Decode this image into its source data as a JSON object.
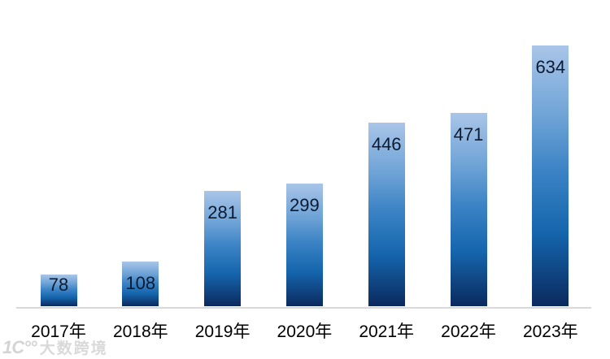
{
  "chart_data": {
    "type": "bar",
    "categories": [
      "2017年",
      "2018年",
      "2019年",
      "2020年",
      "2021年",
      "2022年",
      "2023年"
    ],
    "values": [
      78,
      108,
      281,
      299,
      446,
      471,
      634
    ],
    "title": "",
    "xlabel": "",
    "ylabel": "",
    "grid": false,
    "legend": false,
    "data_label_position": "inside-end",
    "bar_gradient_top": "#a9c5e8",
    "bar_gradient_mid": "#3b83c5",
    "bar_gradient_bottom": "#0b2a5e",
    "data_label_color": "#0c1b31",
    "category_label_color": "#000000",
    "axis_line_color": "#d9d9d9",
    "background_color": "#ffffff"
  },
  "watermark": {
    "logo_text": "1C°°",
    "text": "大数跨境"
  }
}
